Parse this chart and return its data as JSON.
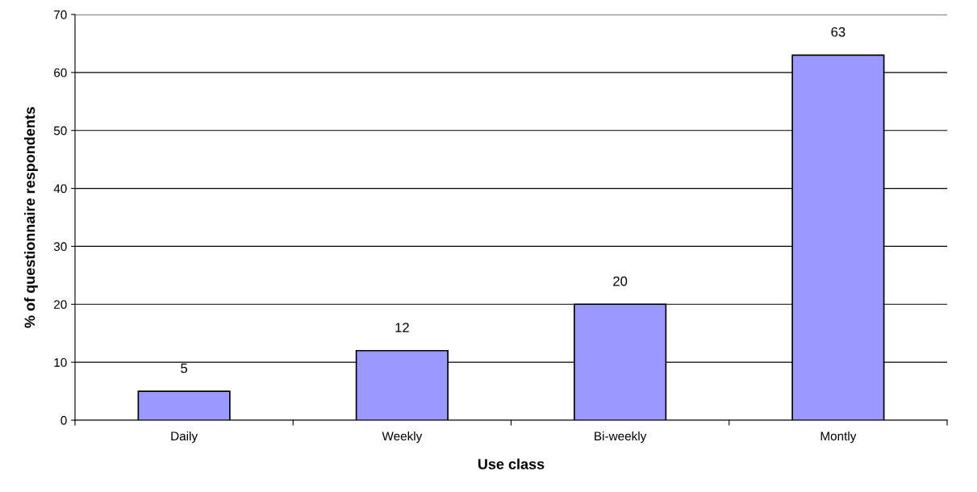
{
  "chart_data": {
    "type": "bar",
    "xlabel": "Use class",
    "ylabel": "% of questionnaire respondents",
    "categories": [
      "Daily",
      "Weekly",
      "Bi-weekly",
      "Montly"
    ],
    "values": [
      5,
      12,
      20,
      63
    ],
    "color": "#9999ff",
    "ylim": [
      0,
      70
    ],
    "yticks": [
      0,
      10,
      20,
      30,
      40,
      50,
      60,
      70
    ],
    "grid": "y",
    "data_labels": true
  }
}
